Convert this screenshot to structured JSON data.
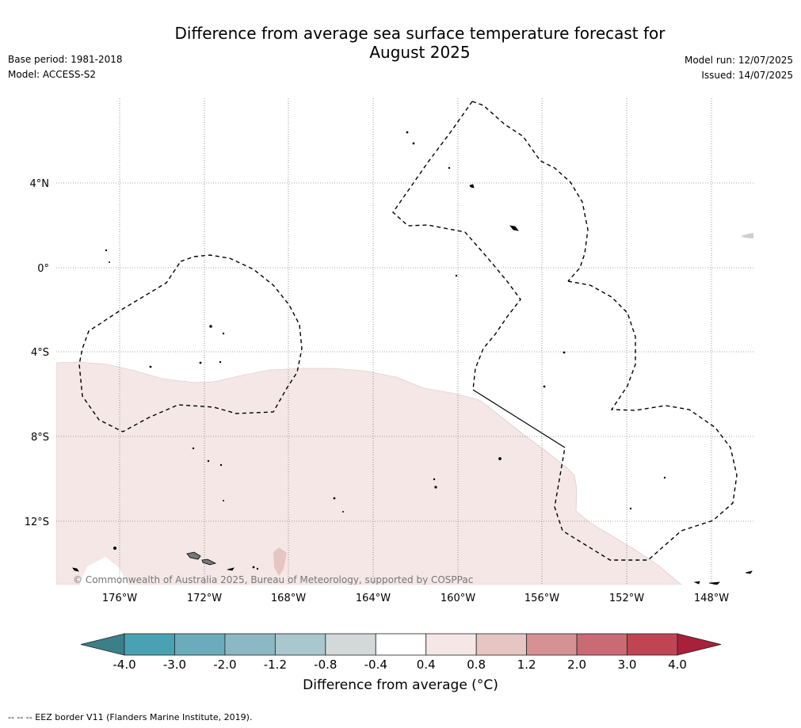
{
  "title_line1": "Difference from average sea surface temperature forecast for",
  "title_line2": "August 2025",
  "base_period": "Base period: 1981-2018",
  "model": "Model: ACCESS-S2",
  "model_run": "Model run: 12/07/2025",
  "issued": "Issued: 14/07/2025",
  "copyright": "© Commonwealth of Australia 2025, Bureau of Meteorology, supported by COSPPac",
  "footer_note": "-- -- -- EEZ border V11 (Flanders Marine Institute, 2019).",
  "map": {
    "lon_labels": [
      "176°W",
      "172°W",
      "168°W",
      "164°W",
      "160°W",
      "156°W",
      "152°W",
      "148°W"
    ],
    "lat_labels": [
      "4°N",
      "0°",
      "4°S",
      "8°S",
      "12°S"
    ],
    "extent": {
      "lon_min": -179,
      "lon_max": -146,
      "lat_min": -15,
      "lat_max": 8
    },
    "anomaly_fill_color": "#f4e7e6",
    "anomaly_category": "0.4 to 0.8"
  },
  "colorbar": {
    "label": "Difference from average (",
    "unit_symbol": "°C",
    "ticks": [
      "-4.0",
      "-3.0",
      "-2.0",
      "-1.2",
      "-0.8",
      "-0.4",
      "0.4",
      "0.8",
      "1.2",
      "2.0",
      "3.0",
      "4.0"
    ],
    "colors": [
      "#49a2b4",
      "#6aacbb",
      "#8cb8c3",
      "#a9c7cd",
      "#d3d8d9",
      "#ffffff",
      "#f4e7e6",
      "#e6c5c2",
      "#d69195",
      "#c96a74",
      "#bf4555"
    ],
    "under_color": "#3b7f89",
    "over_color": "#a9203a"
  }
}
